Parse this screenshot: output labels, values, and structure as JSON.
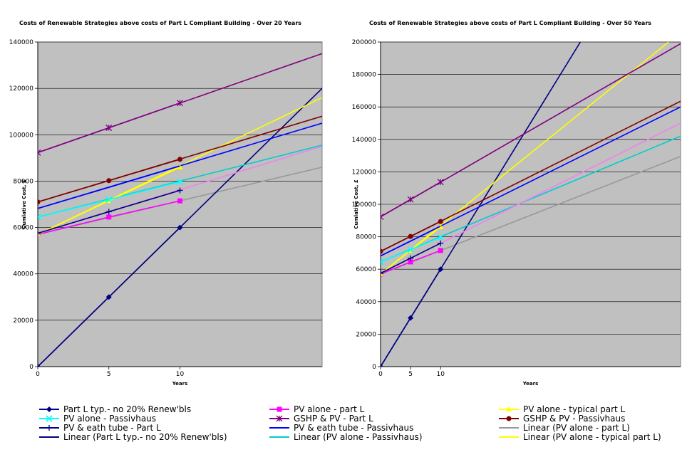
{
  "legend_items": [
    {
      "label": "Part L typ.- no 20% Renew'bls",
      "color": "#000080",
      "marker": "diamond"
    },
    {
      "label": "PV alone - part L",
      "color": "#ff00ff",
      "marker": "square"
    },
    {
      "label": "PV alone - typical part L",
      "color": "#ffff00",
      "marker": "triangle"
    },
    {
      "label": "PV alone - Passivhaus",
      "color": "#00ffff",
      "marker": "x"
    },
    {
      "label": "GSHP & PV - Part L",
      "color": "#800080",
      "marker": "star"
    },
    {
      "label": "GSHP & PV - Passivhaus",
      "color": "#800000",
      "marker": "circle"
    },
    {
      "label": "PV & eath tube - Part L",
      "color": "#000080",
      "marker": "plus"
    },
    {
      "label": "PV & eath tube - Passivhaus",
      "color": "#0000ff",
      "marker": "none"
    },
    {
      "label": "Linear (PV alone - part L)",
      "color": "#999999",
      "marker": "none"
    },
    {
      "label": "Linear (Part L typ.- no 20% Renew'bls)",
      "color": "#000080",
      "marker": "none"
    },
    {
      "label": "Linear (PV alone - Passivhaus)",
      "color": "#00cccc",
      "marker": "none"
    },
    {
      "label": "Linear (PV alone - typical part L)",
      "color": "#ffff00",
      "marker": "none"
    }
  ],
  "chart_data": [
    {
      "type": "line",
      "title": "Costs of Renewable Strategies above costs of Part L Compliant Building - Over 20 Years",
      "xlabel": "Years",
      "ylabel": "Cumlative Cost, £",
      "x_tick_labels": [
        "0",
        "5",
        "10"
      ],
      "xlim": [
        0,
        20
      ],
      "ylim": [
        0,
        140000
      ],
      "y_ticks": [
        0,
        20000,
        40000,
        60000,
        80000,
        100000,
        120000,
        140000
      ],
      "grid": "horizontal",
      "background": "#c0c0c0",
      "series": [
        {
          "name": "Part L typ.- no 20% Renew'bls",
          "color": "#000080",
          "marker": "diamond",
          "x": [
            0,
            5,
            10
          ],
          "y": [
            0,
            30000,
            60000
          ]
        },
        {
          "name": "PV alone - part L",
          "color": "#ff00ff",
          "marker": "square",
          "x": [
            0,
            5,
            10
          ],
          "y": [
            57000,
            64500,
            71500
          ]
        },
        {
          "name": "PV alone - typical part L",
          "color": "#ffff00",
          "marker": "triangle",
          "x": [
            0,
            5,
            10
          ],
          "y": [
            57000,
            71500,
            86000
          ]
        },
        {
          "name": "PV alone - Passivhaus",
          "color": "#00ffff",
          "marker": "x",
          "x": [
            0,
            5,
            10
          ],
          "y": [
            64500,
            72000,
            79700
          ]
        },
        {
          "name": "GSHP & PV - Part L",
          "color": "#800080",
          "marker": "star",
          "x": [
            0,
            5,
            10
          ],
          "y": [
            92300,
            103000,
            113700
          ]
        },
        {
          "name": "GSHP & PV - Passivhaus",
          "color": "#800000",
          "marker": "circle",
          "x": [
            0,
            5,
            10
          ],
          "y": [
            71000,
            80200,
            89400
          ]
        },
        {
          "name": "PV & eath tube - Part L",
          "color": "#000080",
          "marker": "plus",
          "x": [
            0,
            5,
            10
          ],
          "y": [
            57500,
            66800,
            76000
          ]
        },
        {
          "name": "PV & eath tube - Passivhaus",
          "color": "#0000ff",
          "marker": "none",
          "x": [
            0,
            5,
            10
          ],
          "y": [
            68200,
            77300,
            86500
          ]
        }
      ],
      "trendlines": [
        {
          "name": "Linear (PV alone - part L)",
          "color": "#999999",
          "x": [
            0,
            20
          ],
          "y": [
            57000,
            86000
          ]
        },
        {
          "name": "Linear (Part L typ.- no 20% Renew'bls)",
          "color": "#000080",
          "x": [
            0,
            20
          ],
          "y": [
            0,
            120000
          ]
        },
        {
          "name": "Linear (PV alone - Passivhaus)",
          "color": "#00cccc",
          "x": [
            0,
            20
          ],
          "y": [
            64500,
            95500
          ]
        },
        {
          "name": "Linear (PV alone - typical part L)",
          "color": "#ffff00",
          "x": [
            0,
            20
          ],
          "y": [
            57000,
            116000
          ]
        },
        {
          "name": "",
          "color": "#800080",
          "x": [
            0,
            20
          ],
          "y": [
            92300,
            135000
          ]
        },
        {
          "name": "",
          "color": "#800000",
          "x": [
            0,
            20
          ],
          "y": [
            71000,
            108000
          ]
        },
        {
          "name": "",
          "color": "#0000ff",
          "x": [
            0,
            20
          ],
          "y": [
            68200,
            105000
          ]
        },
        {
          "name": "",
          "color": "#ee82ee",
          "x": [
            0,
            20
          ],
          "y": [
            57500,
            95000
          ]
        }
      ]
    },
    {
      "type": "line",
      "title": "Costs of Renewable Strategies above costs of Part L Compliant Building - Over 50 Years",
      "xlabel": "Years",
      "ylabel": "Cumlative Cost, £",
      "x_tick_labels": [
        "0",
        "5",
        "10"
      ],
      "xlim": [
        0,
        50
      ],
      "ylim": [
        0,
        200000
      ],
      "y_ticks": [
        0,
        20000,
        40000,
        60000,
        80000,
        100000,
        120000,
        140000,
        160000,
        180000,
        200000
      ],
      "grid": "horizontal",
      "background": "#c0c0c0",
      "series": [
        {
          "name": "Part L typ.- no 20% Renew'bls",
          "color": "#000080",
          "marker": "diamond",
          "x": [
            0,
            5,
            10
          ],
          "y": [
            0,
            30000,
            60000
          ]
        },
        {
          "name": "PV alone - part L",
          "color": "#ff00ff",
          "marker": "square",
          "x": [
            0,
            5,
            10
          ],
          "y": [
            57000,
            64500,
            71500
          ]
        },
        {
          "name": "PV alone - typical part L",
          "color": "#ffff00",
          "marker": "triangle",
          "x": [
            0,
            5,
            10
          ],
          "y": [
            57000,
            71500,
            86000
          ]
        },
        {
          "name": "PV alone - Passivhaus",
          "color": "#00ffff",
          "marker": "x",
          "x": [
            0,
            5,
            10
          ],
          "y": [
            64500,
            72000,
            79700
          ]
        },
        {
          "name": "GSHP & PV - Part L",
          "color": "#800080",
          "marker": "star",
          "x": [
            0,
            5,
            10
          ],
          "y": [
            92300,
            103000,
            113700
          ]
        },
        {
          "name": "GSHP & PV - Passivhaus",
          "color": "#800000",
          "marker": "circle",
          "x": [
            0,
            5,
            10
          ],
          "y": [
            71000,
            80200,
            89400
          ]
        },
        {
          "name": "PV & eath tube - Part L",
          "color": "#000080",
          "marker": "plus",
          "x": [
            0,
            5,
            10
          ],
          "y": [
            57500,
            66800,
            76000
          ]
        },
        {
          "name": "PV & eath tube - Passivhaus",
          "color": "#0000ff",
          "marker": "none",
          "x": [
            0,
            5,
            10
          ],
          "y": [
            68200,
            77300,
            86500
          ]
        }
      ],
      "trendlines": [
        {
          "name": "Linear (PV alone - part L)",
          "color": "#999999",
          "x": [
            0,
            50
          ],
          "y": [
            57000,
            129500
          ]
        },
        {
          "name": "Linear (Part L typ.- no 20% Renew'bls)",
          "color": "#000080",
          "x": [
            0,
            33.3
          ],
          "y": [
            0,
            200000
          ]
        },
        {
          "name": "Linear (PV alone - Passivhaus)",
          "color": "#00cccc",
          "x": [
            0,
            50
          ],
          "y": [
            64500,
            142000
          ]
        },
        {
          "name": "Linear (PV alone - typical part L)",
          "color": "#ffff00",
          "x": [
            0,
            48
          ],
          "y": [
            57000,
            200000
          ]
        },
        {
          "name": "",
          "color": "#800080",
          "x": [
            0,
            50
          ],
          "y": [
            92300,
            199000
          ]
        },
        {
          "name": "",
          "color": "#800000",
          "x": [
            0,
            50
          ],
          "y": [
            71000,
            163500
          ]
        },
        {
          "name": "",
          "color": "#0000ff",
          "x": [
            0,
            50
          ],
          "y": [
            68200,
            160000
          ]
        },
        {
          "name": "",
          "color": "#ee82ee",
          "x": [
            0,
            50
          ],
          "y": [
            57500,
            150000
          ]
        }
      ]
    }
  ]
}
